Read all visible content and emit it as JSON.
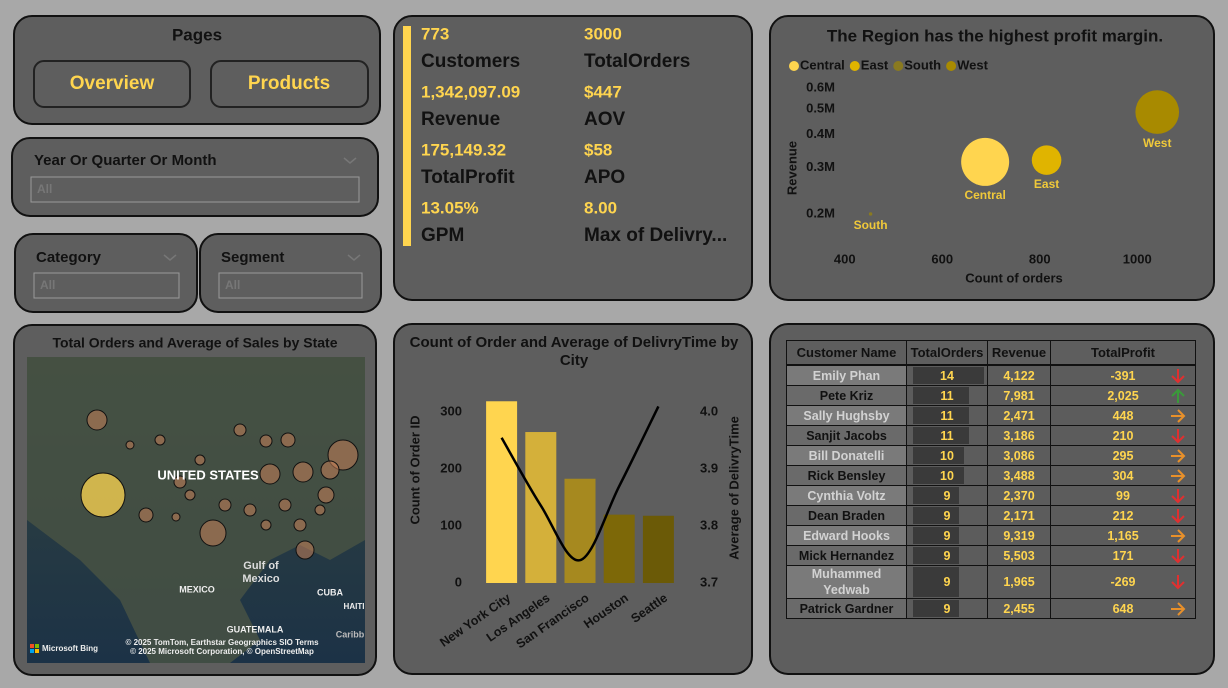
{
  "pages": {
    "title": "Pages",
    "buttons": [
      "Overview",
      "Products"
    ]
  },
  "slicers": [
    {
      "title": "Year Or Quarter Or Month",
      "selection": "All"
    },
    {
      "title": "Category",
      "selection": "All"
    },
    {
      "title": "Segment",
      "selection": "All"
    }
  ],
  "kpis": [
    {
      "value": "773",
      "label": "Customers"
    },
    {
      "value": "3000",
      "label": "TotalOrders"
    },
    {
      "value": "1,342,097.09",
      "label": "Revenue"
    },
    {
      "value": "$447",
      "label": "AOV"
    },
    {
      "value": "175,149.32",
      "label": "TotalProfit"
    },
    {
      "value": "$58",
      "label": "APO"
    },
    {
      "value": "13.05%",
      "label": "GPM"
    },
    {
      "value": "8.00",
      "label": "Max of Delivry..."
    }
  ],
  "map": {
    "title": "Total Orders and Average of Sales by State",
    "labels": [
      "UNITED STATES",
      "Gulf of",
      "Mexico",
      "MEXICO",
      "CUBA",
      "HAITI",
      "GUATEMALA",
      "Caribb"
    ],
    "attribution": "Microsoft Bing",
    "copyright": [
      "© 2025 TomTom, Earthstar Geographics SIO  Terms",
      "© 2025 Microsoft Corporation, © OpenStreetMap"
    ]
  },
  "chart_data": [
    {
      "type": "scatter",
      "title": "The Region has the highest profit margin.",
      "x_label": "Count of orders",
      "y_label": "Revenue",
      "series": [
        {
          "name": "Central",
          "color": "#ffd54f",
          "x": [
            688
          ],
          "values": [
            315000
          ],
          "sizes": [
            58000
          ]
        },
        {
          "name": "East",
          "color": "#e0b400",
          "x": [
            814
          ],
          "values": [
            320000
          ],
          "sizes": [
            22000
          ]
        },
        {
          "name": "South",
          "color": "#8a7a20",
          "x": [
            453
          ],
          "values": [
            200000
          ],
          "sizes": [
            300
          ]
        },
        {
          "name": "West",
          "color": "#a88a00",
          "x": [
            1041
          ],
          "values": [
            487000
          ],
          "sizes": [
            48000
          ]
        }
      ],
      "xlim": [
        380,
        1100
      ],
      "xticks": [
        400,
        600,
        800,
        1000
      ],
      "ylim": [
        180000,
        650000
      ],
      "yticks": [
        {
          "value": 200000,
          "label": "0.2M"
        },
        {
          "value": 300000,
          "label": "0.3M"
        },
        {
          "value": 400000,
          "label": "0.4M"
        },
        {
          "value": 500000,
          "label": "0.5M"
        },
        {
          "value": 600000,
          "label": "0.6M"
        }
      ],
      "log_y": true,
      "legend": "top-left",
      "grid": false
    },
    {
      "type": "bar-line",
      "title": "Count of Order and Average of DelivryTime by City",
      "categories": [
        "New York City",
        "Los Angeles",
        "San Francisco",
        "Houston",
        "Seattle"
      ],
      "series": [
        {
          "name": "Count of Order ID",
          "type": "bar",
          "colors": [
            "#ffd54f",
            "#d4b03a",
            "#a6891f",
            "#7d6808",
            "#6b5a07"
          ],
          "values": [
            319,
            265,
            183,
            120,
            118
          ]
        },
        {
          "name": "Average of DelivryTime",
          "type": "line",
          "axis": "y2",
          "color": "#000000",
          "values": [
            3.955,
            3.836,
            3.74,
            3.87,
            4.01
          ]
        }
      ],
      "ylim": [
        0,
        330
      ],
      "yticks": [
        0,
        100,
        200,
        300
      ],
      "y2lim": [
        3.7,
        4.03
      ],
      "y2ticks": [
        3.7,
        3.8,
        3.9,
        {
          "value": 4,
          "label": "4.0"
        }
      ],
      "grid": false
    }
  ],
  "table": {
    "columns": [
      "Customer Name",
      "TotalOrders",
      "Revenue",
      "TotalProfit"
    ],
    "rows": [
      {
        "name": "Emily Phan",
        "orders": 14,
        "revenue": "4,122",
        "profit": "-391",
        "trend": "down"
      },
      {
        "name": "Pete Kriz",
        "orders": 11,
        "revenue": "7,981",
        "profit": "2,025",
        "trend": "up"
      },
      {
        "name": "Sally Hughsby",
        "orders": 11,
        "revenue": "2,471",
        "profit": "448",
        "trend": "right"
      },
      {
        "name": "Sanjit Jacobs",
        "orders": 11,
        "revenue": "3,186",
        "profit": "210",
        "trend": "down"
      },
      {
        "name": "Bill Donatelli",
        "orders": 10,
        "revenue": "3,086",
        "profit": "295",
        "trend": "right"
      },
      {
        "name": "Rick Bensley",
        "orders": 10,
        "revenue": "3,488",
        "profit": "304",
        "trend": "right"
      },
      {
        "name": "Cynthia Voltz",
        "orders": 9,
        "revenue": "2,370",
        "profit": "99",
        "trend": "down"
      },
      {
        "name": "Dean Braden",
        "orders": 9,
        "revenue": "2,171",
        "profit": "212",
        "trend": "down"
      },
      {
        "name": "Edward Hooks",
        "orders": 9,
        "revenue": "9,319",
        "profit": "1,165",
        "trend": "right"
      },
      {
        "name": "Mick Hernandez",
        "orders": 9,
        "revenue": "5,503",
        "profit": "171",
        "trend": "down"
      },
      {
        "name": "Muhammed Yedwab",
        "orders": 9,
        "revenue": "1,965",
        "profit": "-269",
        "trend": "down"
      },
      {
        "name": "Patrick Gardner",
        "orders": 9,
        "revenue": "2,455",
        "profit": "648",
        "trend": "right"
      }
    ]
  }
}
